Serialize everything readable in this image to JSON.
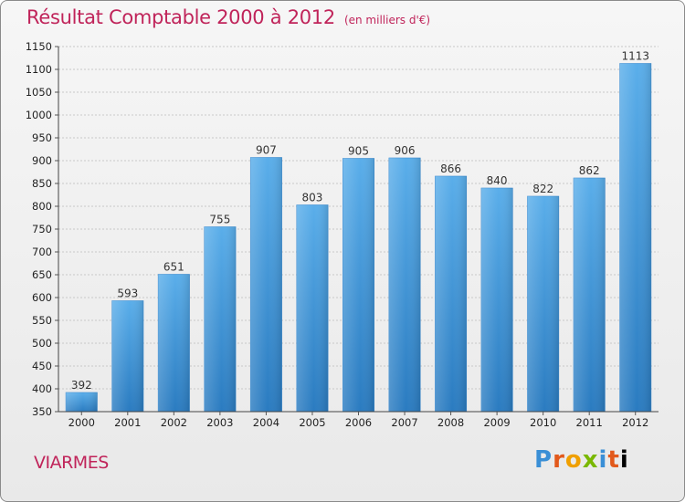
{
  "header": {
    "title": "Résultat Comptable 2000 à 2012",
    "unit": "(en milliers d'€)"
  },
  "footer": {
    "city": "VIARMES",
    "logo_letters": [
      "P",
      "r",
      "o",
      "x",
      "i",
      "t",
      "i"
    ]
  },
  "colors": {
    "title": "#c0245a",
    "bar_top": "#5aaeea",
    "bar_bottom": "#2a7bc0"
  },
  "chart_data": {
    "type": "bar",
    "title": "Résultat Comptable 2000 à 2012",
    "subtitle": "(en milliers d'€)",
    "categories": [
      "2000",
      "2001",
      "2002",
      "2003",
      "2004",
      "2005",
      "2006",
      "2007",
      "2008",
      "2009",
      "2010",
      "2011",
      "2012"
    ],
    "values": [
      392,
      593,
      651,
      755,
      907,
      803,
      905,
      906,
      866,
      840,
      822,
      862,
      1113
    ],
    "ylim": [
      350,
      1150
    ],
    "yticks": [
      350,
      400,
      450,
      500,
      550,
      600,
      650,
      700,
      750,
      800,
      850,
      900,
      950,
      1000,
      1050,
      1100,
      1150
    ],
    "grid": true,
    "data_labels": true
  }
}
